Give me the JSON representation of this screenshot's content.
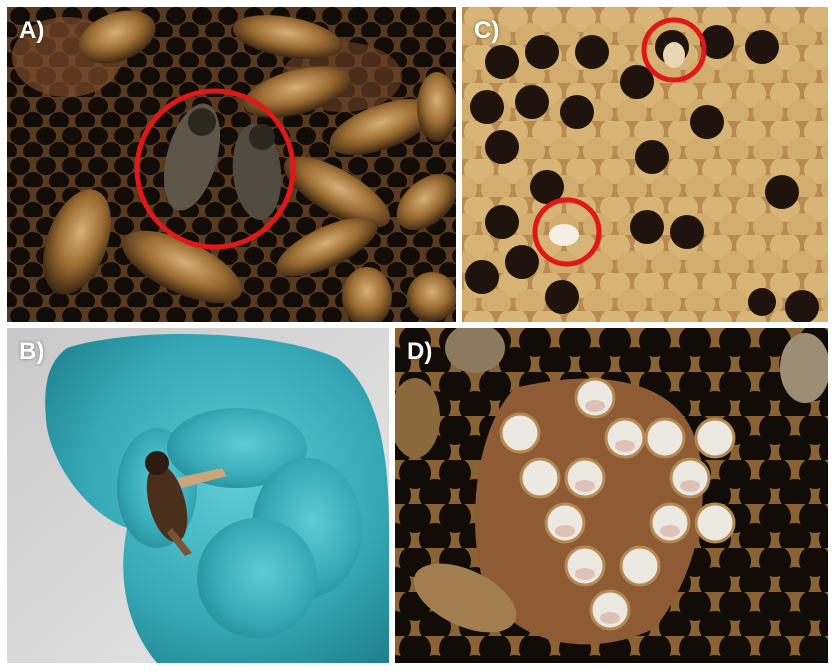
{
  "panels": {
    "a": {
      "label": "A)"
    },
    "b": {
      "label": "B)"
    },
    "c": {
      "label": "C)"
    },
    "d": {
      "label": "D)"
    }
  },
  "colors": {
    "highlight_ring": "#e01818",
    "comb_dark": "#1c130d",
    "wax_rim": "#a9783f",
    "capped_wax": "#d9b673",
    "glove": "#3fb5c2",
    "bee_body": "#b8894a",
    "pupa_white": "#ece9e3"
  }
}
